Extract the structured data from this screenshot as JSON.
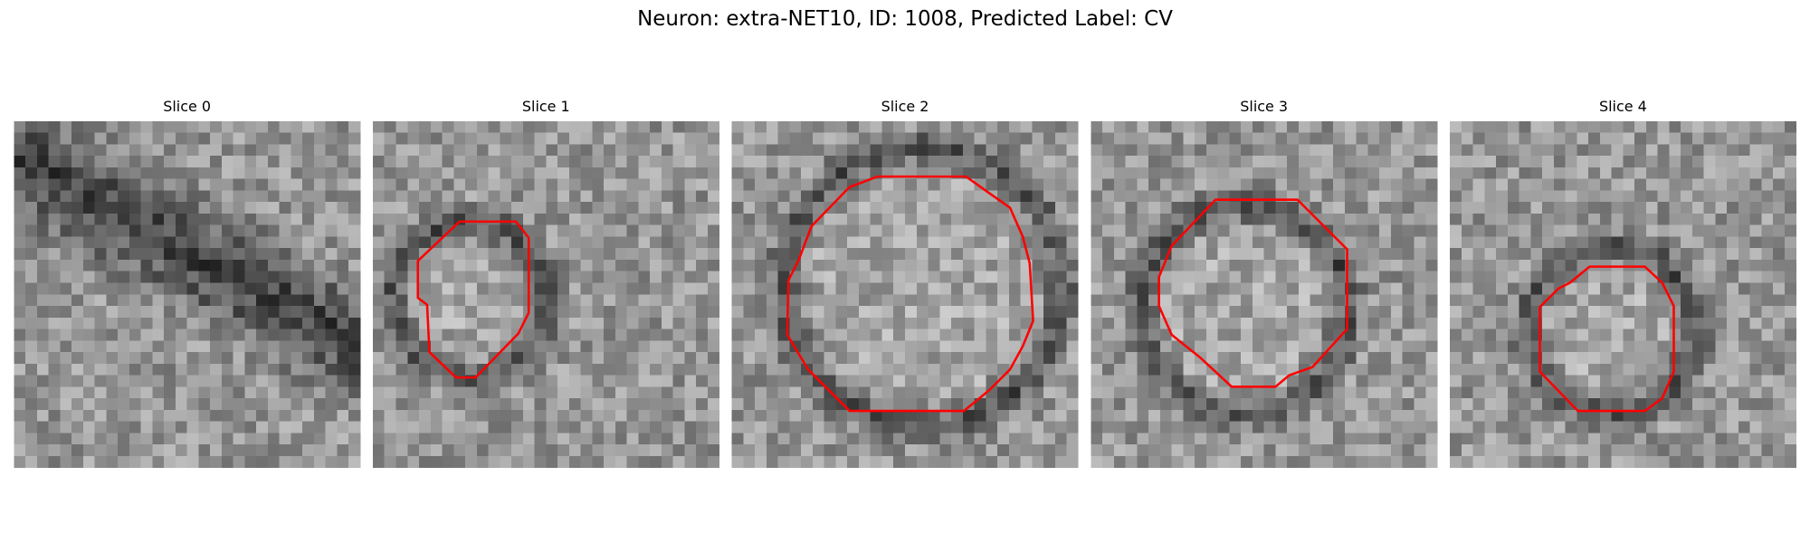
{
  "header": {
    "title": "Neuron: extra-NET10, ID: 1008, Predicted Label: CV"
  },
  "panels": [
    {
      "label": "Slice 0"
    },
    {
      "label": "Slice 1"
    },
    {
      "label": "Slice 2"
    },
    {
      "label": "Slice 3"
    },
    {
      "label": "Slice 4"
    }
  ]
}
